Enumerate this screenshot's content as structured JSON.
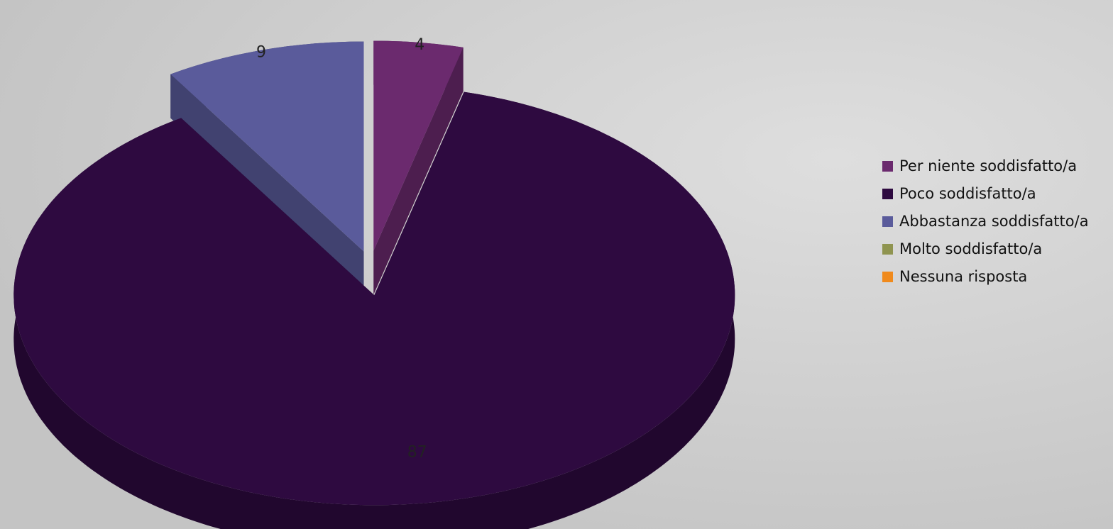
{
  "chart_data": {
    "type": "pie",
    "categories": [
      "Per niente soddisfatto/a",
      "Poco soddisfatto/a",
      "Abbastanza soddisfatto/a",
      "Molto soddisfatto/a",
      "Nessuna risposta"
    ],
    "values": [
      4,
      87,
      9,
      0,
      0
    ],
    "colors": [
      "#6b2a6e",
      "#2e0a40",
      "#5a5b9b",
      "#8f9450",
      "#f08a1c"
    ],
    "legend": "right"
  }
}
